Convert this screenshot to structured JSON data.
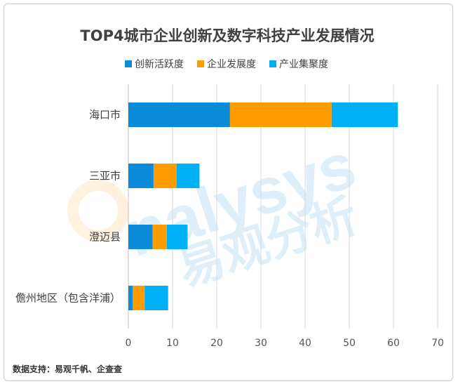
{
  "watermark": {
    "latin": "nalysys",
    "cn": "易观分析"
  },
  "source": "数据支持：易观千帆、企查查",
  "chart_data": {
    "type": "bar",
    "orientation": "horizontal",
    "stacked": true,
    "title": "TOP4城市企业创新及数字科技产业发展情况",
    "categories": [
      "海口市",
      "三亚市",
      "澄迈县",
      "儋州地区（包含洋浦）"
    ],
    "series": [
      {
        "name": "创新活跃度",
        "color": "#0C8BD8",
        "values": [
          23,
          5.7,
          5.5,
          1
        ]
      },
      {
        "name": "企业发展度",
        "color": "#FF9C00",
        "values": [
          23,
          5.2,
          3.2,
          2.7
        ]
      },
      {
        "name": "产业集聚度",
        "color": "#00B0F7",
        "values": [
          15,
          5.2,
          4.7,
          5.3
        ]
      }
    ],
    "xlim": [
      0,
      70
    ],
    "xticks": [
      0,
      10,
      20,
      30,
      40,
      50,
      60,
      70
    ],
    "xlabel": "",
    "ylabel": "",
    "grid": true,
    "legend_position": "top"
  }
}
